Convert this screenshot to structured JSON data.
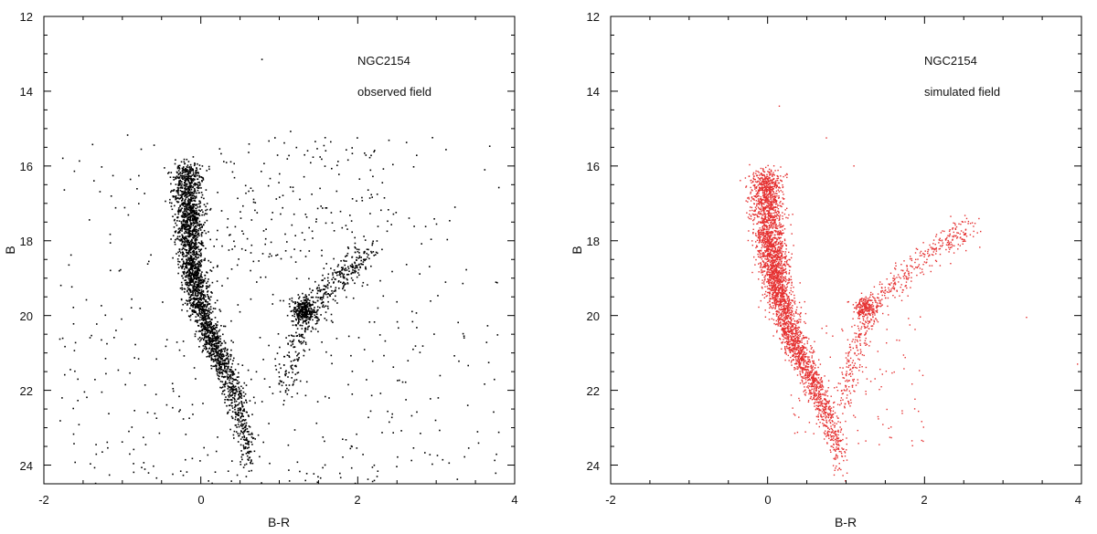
{
  "chart_data": [
    {
      "type": "scatter",
      "annotations": [
        "NGC2154",
        "observed field"
      ],
      "xlabel": "B-R",
      "ylabel": "B",
      "xlim": [
        -2,
        4
      ],
      "ylim": [
        24.5,
        12
      ],
      "y_inverted": true,
      "x_ticks": [
        "-2",
        "0",
        "2",
        "4"
      ],
      "y_ticks": [
        "12",
        "14",
        "16",
        "18",
        "20",
        "22",
        "24"
      ],
      "point_color": "#000000",
      "grid": false,
      "legend": "none",
      "features": {
        "main_sequence": [
          [
            0.62,
            24.3
          ],
          [
            0.58,
            23.2
          ],
          [
            0.45,
            22.2
          ],
          [
            0.28,
            21.3
          ],
          [
            0.1,
            20.5
          ],
          [
            -0.05,
            19.5
          ],
          [
            -0.12,
            18.5
          ],
          [
            -0.15,
            17.3
          ],
          [
            -0.18,
            16.0
          ]
        ],
        "red_giant_branch": [
          [
            1.05,
            22.0
          ],
          [
            1.18,
            21.0
          ],
          [
            1.32,
            20.1
          ],
          [
            1.55,
            19.5
          ],
          [
            1.85,
            18.8
          ],
          [
            2.1,
            18.3
          ]
        ],
        "red_clump": {
          "x": 1.3,
          "y": 19.85
        },
        "brightest_star": [
          0.78,
          13.15
        ]
      }
    },
    {
      "type": "scatter",
      "annotations": [
        "NGC2154",
        "simulated field"
      ],
      "xlabel": "B-R",
      "ylabel": "B",
      "xlim": [
        -2,
        4
      ],
      "ylim": [
        24.5,
        12
      ],
      "y_inverted": true,
      "x_ticks": [
        "-2",
        "0",
        "2",
        "4"
      ],
      "y_ticks": [
        "12",
        "14",
        "16",
        "18",
        "20",
        "22",
        "24"
      ],
      "point_color": "#e53030",
      "grid": false,
      "legend": "none",
      "features": {
        "main_sequence": [
          [
            0.95,
            24.5
          ],
          [
            0.88,
            23.5
          ],
          [
            0.72,
            22.5
          ],
          [
            0.5,
            21.5
          ],
          [
            0.3,
            20.5
          ],
          [
            0.12,
            19.2
          ],
          [
            0.03,
            18.0
          ],
          [
            -0.02,
            16.2
          ]
        ],
        "red_giant_branch": [
          [
            0.95,
            22.5
          ],
          [
            1.05,
            21.5
          ],
          [
            1.2,
            20.5
          ],
          [
            1.4,
            19.6
          ],
          [
            1.8,
            18.8
          ],
          [
            2.2,
            18.1
          ],
          [
            2.6,
            17.7
          ]
        ],
        "red_clump": {
          "x": 1.25,
          "y": 19.8
        },
        "isolated_stars": [
          [
            0.15,
            14.4
          ],
          [
            0.75,
            15.25
          ],
          [
            1.1,
            16.0
          ],
          [
            3.3,
            20.05
          ],
          [
            3.95,
            21.3
          ]
        ]
      }
    }
  ]
}
